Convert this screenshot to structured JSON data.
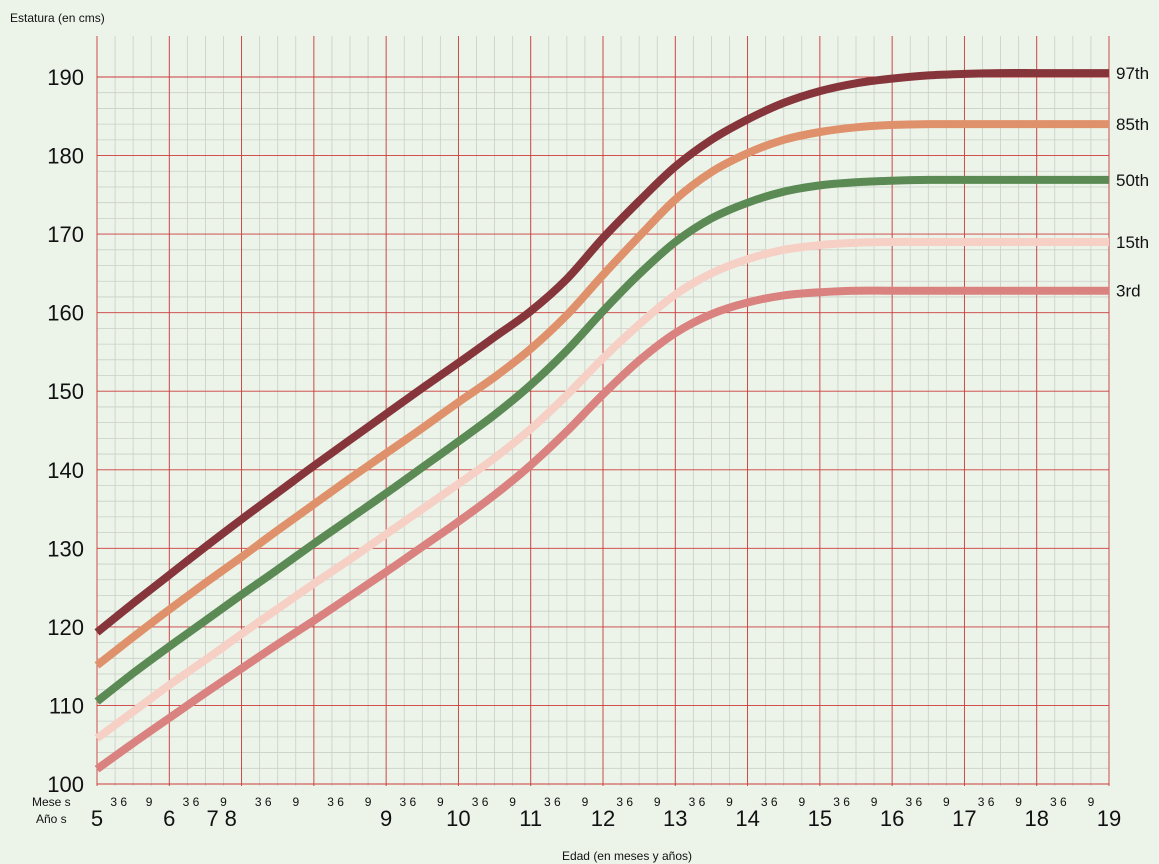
{
  "chart_data": {
    "type": "line",
    "title": "",
    "ylabel": "Estatura (en cms)",
    "xlabel": "Edad (en meses y años)",
    "ylim": [
      100,
      190
    ],
    "yticks": [
      100,
      110,
      120,
      130,
      140,
      150,
      160,
      170,
      180,
      190
    ],
    "xlim": [
      5,
      19
    ],
    "grid": true,
    "row_labels": {
      "months": "Mese s",
      "years": "Año s"
    },
    "year_tick_labels": [
      {
        "label": "5",
        "x": 5
      },
      {
        "label": "6",
        "x": 6
      },
      {
        "label": "7",
        "x": 6.6
      },
      {
        "label": "8",
        "x": 6.85
      },
      {
        "label": "9",
        "x": 9
      },
      {
        "label": "10",
        "x": 10
      },
      {
        "label": "11",
        "x": 11
      },
      {
        "label": "12",
        "x": 12
      },
      {
        "label": "13",
        "x": 13
      },
      {
        "label": "14",
        "x": 14
      },
      {
        "label": "15",
        "x": 15
      },
      {
        "label": "16",
        "x": 16
      },
      {
        "label": "17",
        "x": 17
      },
      {
        "label": "18",
        "x": 18
      },
      {
        "label": "19",
        "x": 19
      }
    ],
    "month_tick_labels": [
      {
        "label": "3 6",
        "x": 5.3
      },
      {
        "label": "9",
        "x": 5.72
      },
      {
        "label": "3 6",
        "x": 6.3
      },
      {
        "label": "9",
        "x": 6.75
      },
      {
        "label": "3 6",
        "x": 7.3
      },
      {
        "label": "9",
        "x": 7.75
      },
      {
        "label": "3 6",
        "x": 8.3
      },
      {
        "label": "9",
        "x": 8.75
      },
      {
        "label": "3 6",
        "x": 9.3
      },
      {
        "label": "9",
        "x": 9.75
      },
      {
        "label": "3 6",
        "x": 10.3
      },
      {
        "label": "9",
        "x": 10.75
      },
      {
        "label": "3 6",
        "x": 11.3
      },
      {
        "label": "9",
        "x": 11.75
      },
      {
        "label": "3 6",
        "x": 12.3
      },
      {
        "label": "9",
        "x": 12.75
      },
      {
        "label": "3 6",
        "x": 13.3
      },
      {
        "label": "9",
        "x": 13.75
      },
      {
        "label": "3 6",
        "x": 14.3
      },
      {
        "label": "9",
        "x": 14.75
      },
      {
        "label": "3 6",
        "x": 15.3
      },
      {
        "label": "9",
        "x": 15.75
      },
      {
        "label": "3 6",
        "x": 16.3
      },
      {
        "label": "9",
        "x": 16.75
      },
      {
        "label": "3 6",
        "x": 17.3
      },
      {
        "label": "9",
        "x": 17.75
      },
      {
        "label": "3 6",
        "x": 18.3
      },
      {
        "label": "9",
        "x": 18.75
      }
    ],
    "x": [
      5,
      5.5,
      6,
      6.5,
      7,
      7.5,
      8,
      8.5,
      9,
      9.5,
      10,
      10.5,
      11,
      11.5,
      12,
      12.5,
      13,
      13.5,
      14,
      14.5,
      15,
      15.5,
      16,
      16.5,
      17,
      17.5,
      18,
      18.5,
      19
    ],
    "series": [
      {
        "name": "97th",
        "color": "#86353b",
        "values": [
          119.3,
          123.0,
          126.6,
          130.2,
          133.7,
          137.1,
          140.5,
          143.8,
          147.1,
          150.4,
          153.6,
          156.9,
          160.2,
          164.3,
          169.5,
          174.2,
          178.6,
          182.0,
          184.6,
          186.7,
          188.2,
          189.2,
          189.8,
          190.2,
          190.4,
          190.5,
          190.5,
          190.5,
          190.5
        ]
      },
      {
        "name": "85th",
        "color": "#df916b",
        "values": [
          115.1,
          118.7,
          122.2,
          125.6,
          128.9,
          132.3,
          135.6,
          138.9,
          142.1,
          145.3,
          148.6,
          151.8,
          155.4,
          159.7,
          164.8,
          169.7,
          174.4,
          177.9,
          180.3,
          182.0,
          183.0,
          183.6,
          183.9,
          184.0,
          184.0,
          184.0,
          184.0,
          184.0,
          184.0
        ]
      },
      {
        "name": "50th",
        "color": "#5b8a55",
        "values": [
          110.5,
          114.1,
          117.5,
          120.8,
          124.1,
          127.3,
          130.6,
          133.8,
          137.0,
          140.3,
          143.6,
          147.0,
          150.8,
          155.2,
          160.2,
          164.9,
          169.0,
          172.0,
          174.0,
          175.4,
          176.2,
          176.6,
          176.8,
          176.9,
          176.9,
          176.9,
          176.9,
          176.9,
          176.9
        ]
      },
      {
        "name": "15th",
        "color": "#f6cfc5",
        "values": [
          105.8,
          109.2,
          112.6,
          115.8,
          119.1,
          122.3,
          125.5,
          128.6,
          131.8,
          135.0,
          138.2,
          141.5,
          145.2,
          149.5,
          154.2,
          158.5,
          162.3,
          165.0,
          166.8,
          168.0,
          168.6,
          168.9,
          169.0,
          169.0,
          169.0,
          169.0,
          169.0,
          169.0,
          169.0
        ]
      },
      {
        "name": "3rd",
        "color": "#d9827f",
        "values": [
          101.9,
          105.2,
          108.4,
          111.6,
          114.7,
          117.8,
          120.8,
          123.9,
          127.0,
          130.2,
          133.4,
          136.8,
          140.6,
          144.9,
          149.6,
          153.9,
          157.4,
          159.8,
          161.3,
          162.2,
          162.6,
          162.8,
          162.8,
          162.8,
          162.8,
          162.8,
          162.8,
          162.8,
          162.8
        ]
      }
    ]
  }
}
